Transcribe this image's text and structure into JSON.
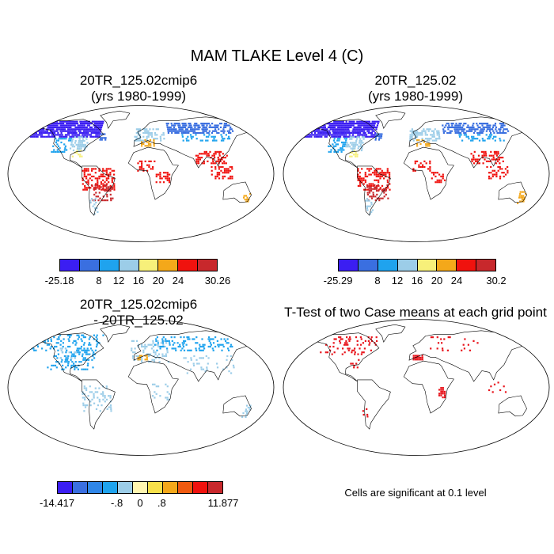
{
  "main_title": "MAM TLAKE Level 4 (C)",
  "panels": [
    {
      "title_line1": "20TR_125.02cmip6",
      "title_line2": "(yrs 1980-1999)"
    },
    {
      "title_line1": "20TR_125.02",
      "title_line2": "(yrs 1980-1999)"
    },
    {
      "title_line1": "20TR_125.02cmip6",
      "title_line2": "- 20TR_125.02"
    },
    {
      "title_line1": "T-Test of two Case means at each grid point",
      "title_line2": ""
    }
  ],
  "colorbars": [
    {
      "colors": [
        "#3b1ef2",
        "#3a6fe0",
        "#1fa3ee",
        "#9ccde8",
        "#f7f07a",
        "#f4a81a",
        "#f0120e",
        "#c8282c"
      ],
      "labels": [
        "-25.18",
        "8",
        "12",
        "16",
        "20",
        "24",
        "30.26"
      ]
    },
    {
      "colors": [
        "#3b1ef2",
        "#3a6fe0",
        "#1fa3ee",
        "#9ccde8",
        "#f7f07a",
        "#f4a81a",
        "#f0120e",
        "#c8282c"
      ],
      "labels": [
        "-25.29",
        "8",
        "12",
        "16",
        "20",
        "24",
        "30.2"
      ]
    },
    {
      "colors": [
        "#3b1ef2",
        "#3a6fe0",
        "#2f86e8",
        "#1fa3ee",
        "#9ccde8",
        "#fff6b0",
        "#f7e04a",
        "#f4a81a",
        "#f05a10",
        "#f0120e",
        "#c8282c"
      ],
      "labels": [
        "-14.417",
        "-.8",
        "0",
        ".8",
        "11.877"
      ]
    }
  ],
  "significance_note": "Cells are significant at 0.1 level",
  "colors": {
    "significant": "#e8141c",
    "coastline": "#000000"
  }
}
